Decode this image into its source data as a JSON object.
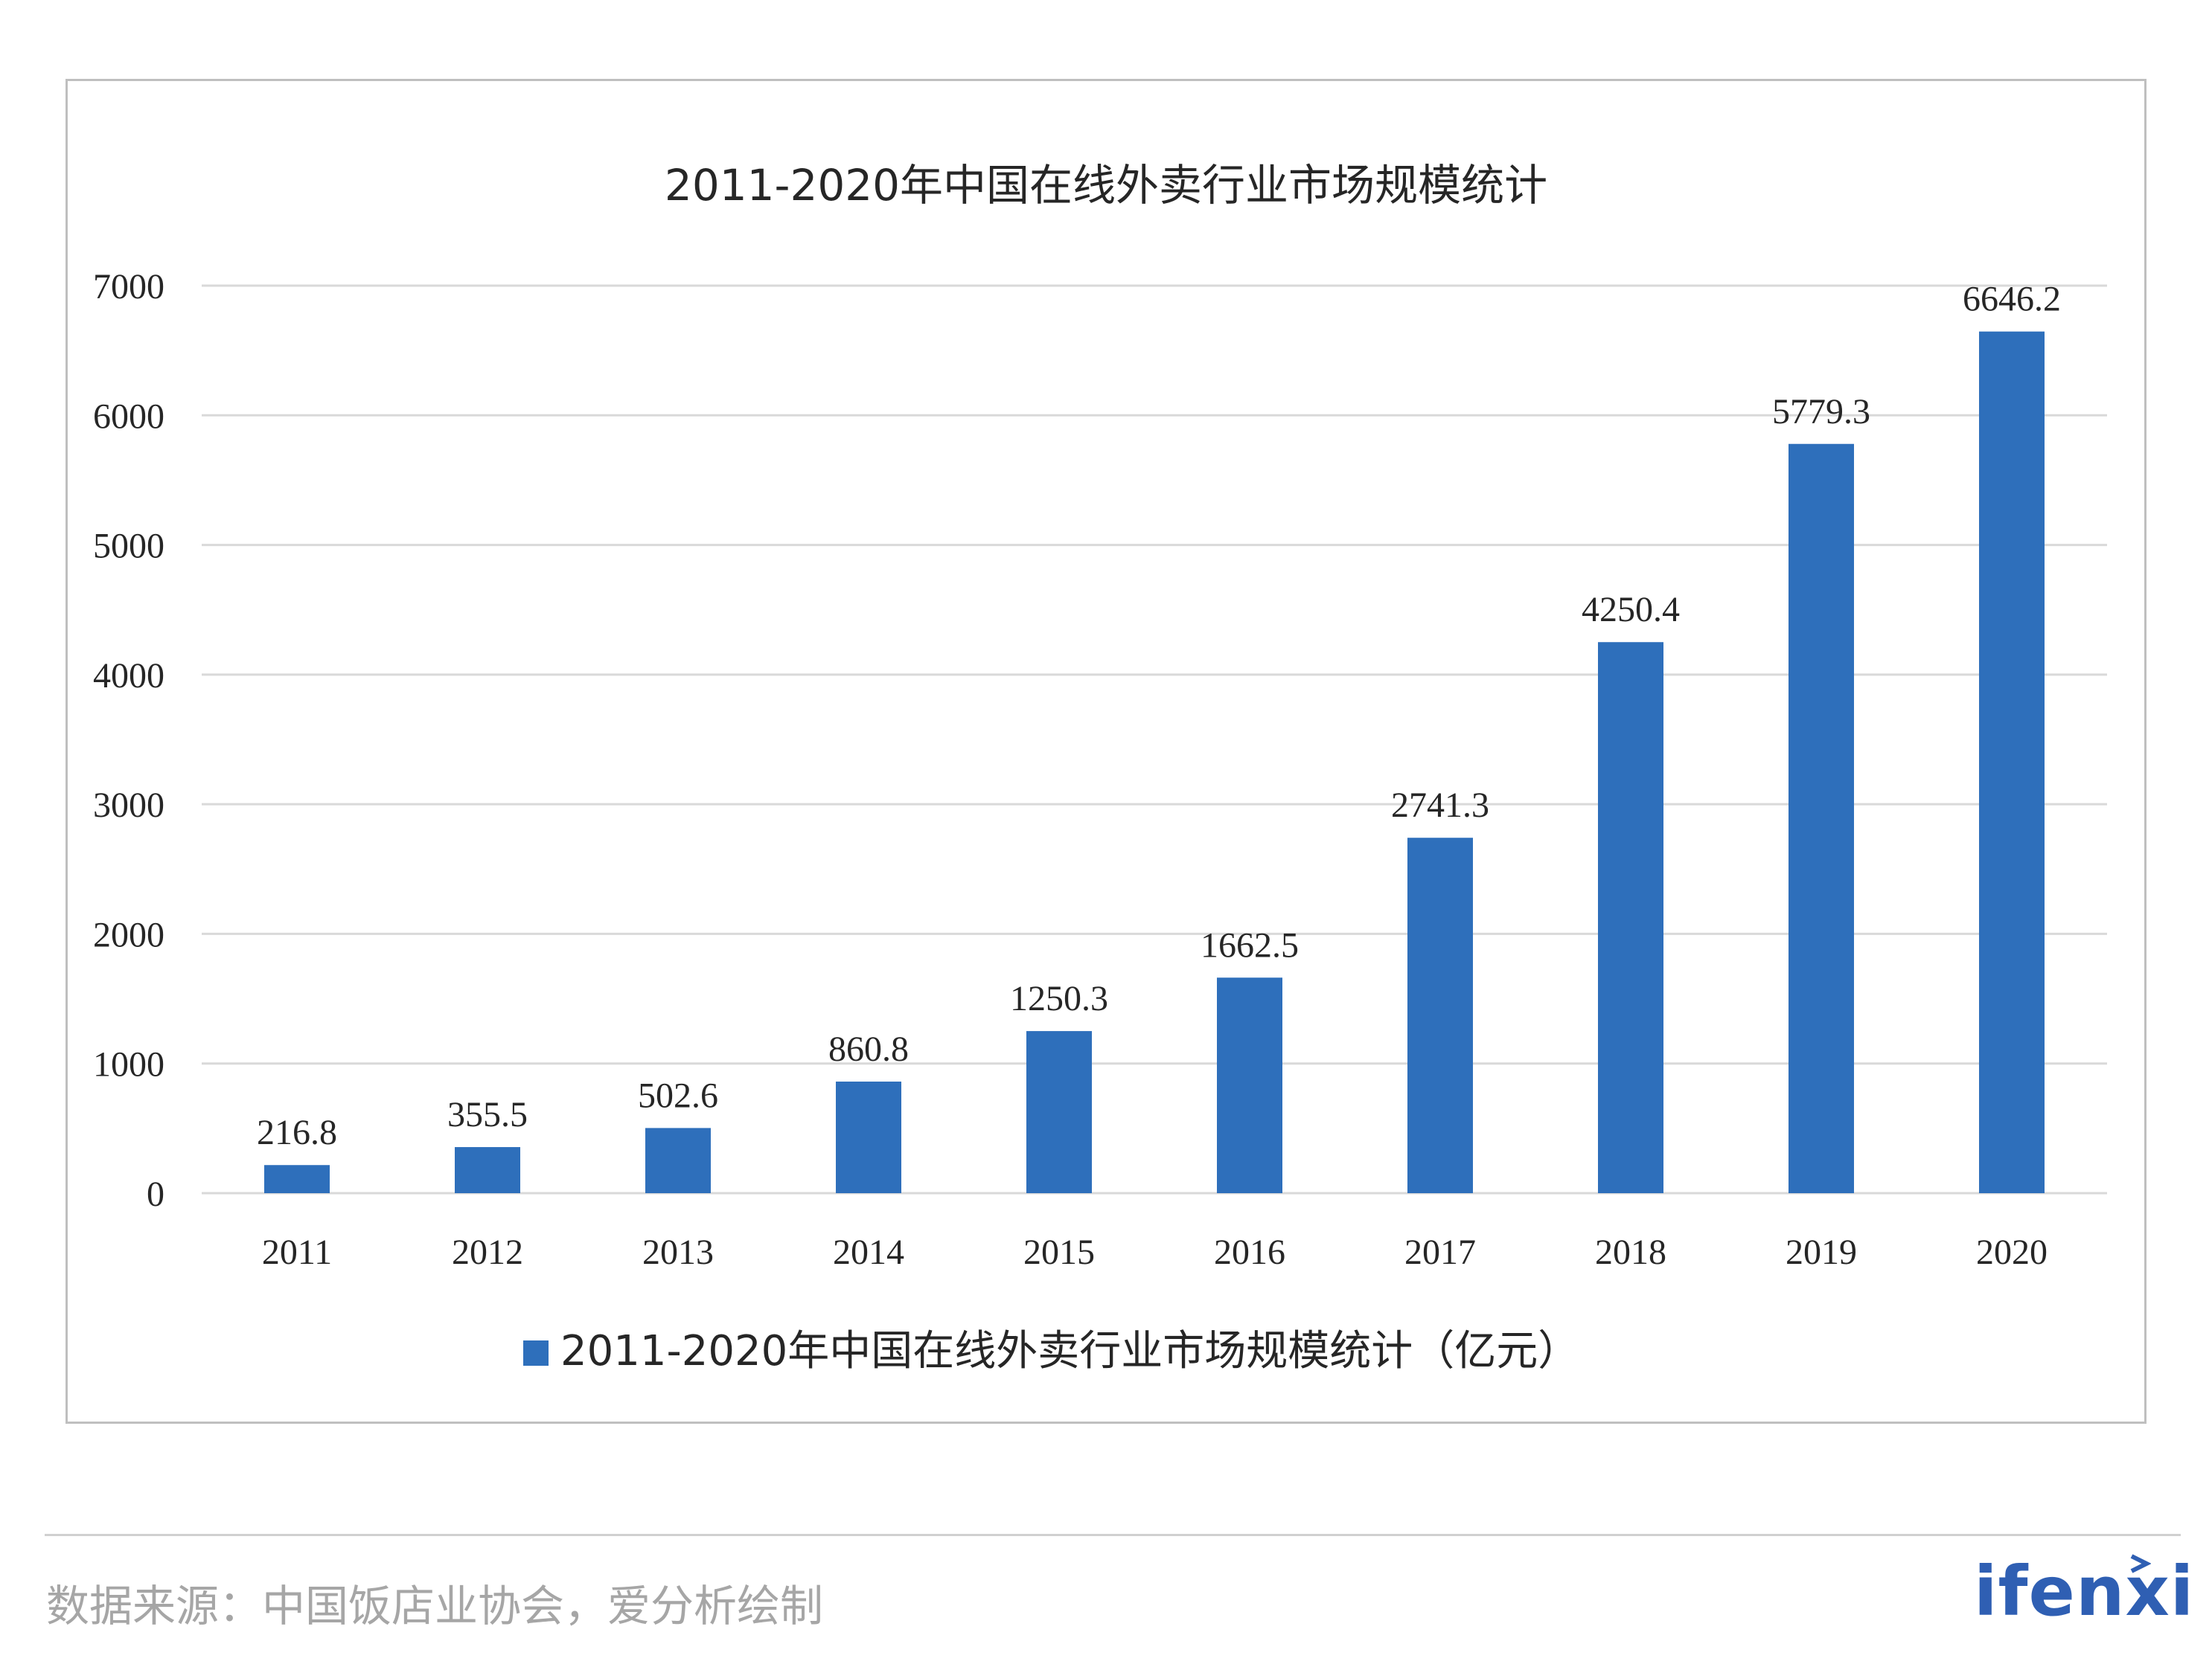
{
  "chart_data": {
    "type": "bar",
    "title": "2011-2020年中国在线外卖行业市场规模统计",
    "categories": [
      "2011",
      "2012",
      "2013",
      "2014",
      "2015",
      "2016",
      "2017",
      "2018",
      "2019",
      "2020"
    ],
    "series": [
      {
        "name": "2011-2020年中国在线外卖行业市场规模统计（亿元）",
        "values": [
          216.8,
          355.5,
          502.6,
          860.8,
          1250.3,
          1662.5,
          2741.3,
          4250.4,
          5779.3,
          6646.2
        ],
        "labels": [
          "216.8",
          "355.5",
          "502.6",
          "860.8",
          "1250.3",
          "1662.5",
          "2741.3",
          "4250.4",
          "5779.3",
          "6646.2"
        ],
        "color": "#2e6fbb"
      }
    ],
    "ylim": [
      0,
      7000
    ],
    "yticks": [
      0,
      1000,
      2000,
      3000,
      4000,
      5000,
      6000,
      7000
    ],
    "grid": true,
    "legend": "bottom"
  },
  "footer": {
    "source": "数据来源：中国饭店业协会，爱分析绘制",
    "logo": "ifenxi"
  },
  "colors": {
    "bar": "#2e6fbb",
    "grid": "#d9d9d9",
    "logo": "#2f5fb3"
  }
}
